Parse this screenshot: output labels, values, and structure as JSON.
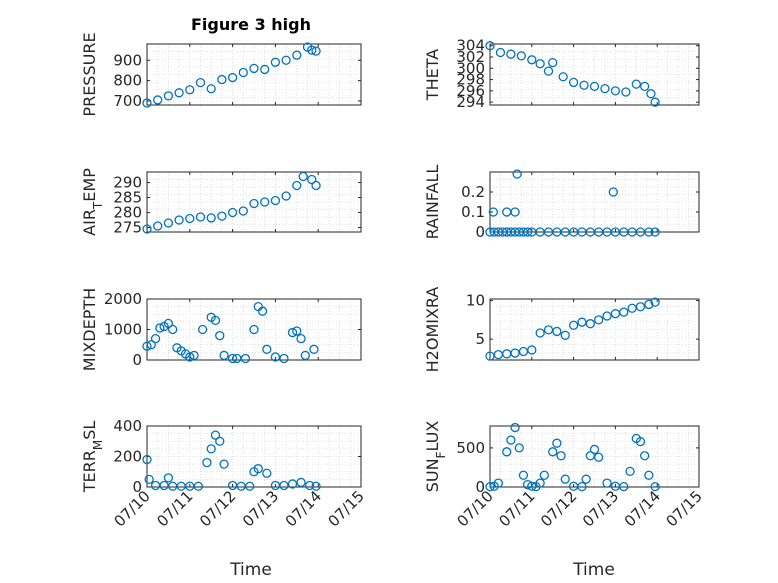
{
  "figure": {
    "title": "Figure 3 high",
    "xlabel": "Time",
    "x_tick_labels": [
      "07/10",
      "07/11",
      "07/12",
      "07/13",
      "07/14",
      "07/15"
    ],
    "marker_color": "#0072BD"
  },
  "chart_data": [
    {
      "type": "scatter",
      "ylabel_parts": [
        "PRESSURE"
      ],
      "ylim": [
        680,
        980
      ],
      "yticks": [
        700,
        800,
        900
      ],
      "x_days": [
        0.0,
        0.25,
        0.5,
        0.75,
        1.0,
        1.25,
        1.5,
        1.75,
        2.0,
        2.25,
        2.5,
        2.75,
        3.0,
        3.25,
        3.5,
        3.75,
        3.85,
        3.95
      ],
      "values": [
        690,
        705,
        725,
        740,
        755,
        790,
        760,
        805,
        815,
        840,
        860,
        855,
        890,
        900,
        925,
        965,
        950,
        945
      ]
    },
    {
      "type": "scatter",
      "ylabel_parts": [
        "THETA"
      ],
      "ylim": [
        293.5,
        304.3
      ],
      "yticks": [
        294,
        296,
        298,
        300,
        302,
        304
      ],
      "x_days": [
        0.0,
        0.25,
        0.5,
        0.75,
        1.0,
        1.2,
        1.4,
        1.5,
        1.75,
        2.0,
        2.25,
        2.5,
        2.75,
        3.0,
        3.25,
        3.5,
        3.7,
        3.85,
        3.95
      ],
      "values": [
        304,
        302.8,
        302.5,
        302.2,
        301.5,
        300.8,
        299.5,
        301,
        298.5,
        297.5,
        297.0,
        296.8,
        296.4,
        296.0,
        295.8,
        297.2,
        296.8,
        295.5,
        294
      ]
    },
    {
      "type": "scatter",
      "ylabel_parts": [
        "AIR",
        "T",
        "EMP"
      ],
      "ylim": [
        273.5,
        293.5
      ],
      "yticks": [
        275,
        280,
        285,
        290
      ],
      "x_days": [
        0.0,
        0.25,
        0.5,
        0.75,
        1.0,
        1.25,
        1.5,
        1.75,
        2.0,
        2.25,
        2.5,
        2.75,
        3.0,
        3.25,
        3.5,
        3.65,
        3.85,
        3.95
      ],
      "values": [
        274.5,
        275.5,
        276.5,
        277.5,
        278.0,
        278.5,
        278.2,
        278.8,
        280.0,
        280.5,
        283.0,
        283.5,
        284.0,
        285.5,
        289.0,
        292.0,
        291.0,
        289.0
      ]
    },
    {
      "type": "scatter",
      "ylabel_parts": [
        "RAINFALL"
      ],
      "ylim": [
        0,
        0.3
      ],
      "yticks": [
        0,
        0.1,
        0.2
      ],
      "x_days": [
        0.0,
        0.1,
        0.2,
        0.3,
        0.4,
        0.5,
        0.6,
        0.7,
        0.8,
        0.9,
        1.0,
        1.2,
        1.4,
        1.6,
        1.8,
        2.0,
        2.2,
        2.4,
        2.6,
        2.8,
        3.0,
        3.2,
        3.4,
        3.6,
        3.8,
        3.95,
        0.08,
        0.4,
        0.6,
        0.65,
        2.95
      ],
      "values": [
        0,
        0,
        0,
        0,
        0,
        0,
        0,
        0,
        0,
        0,
        0,
        0,
        0,
        0,
        0,
        0,
        0,
        0,
        0,
        0,
        0,
        0,
        0,
        0,
        0,
        0,
        0.1,
        0.1,
        0.1,
        0.29,
        0.2
      ]
    },
    {
      "type": "scatter",
      "ylabel_parts": [
        "MIXDEPTH"
      ],
      "ylim": [
        0,
        2000
      ],
      "yticks": [
        0,
        1000,
        2000
      ],
      "x_days": [
        0.0,
        0.1,
        0.2,
        0.3,
        0.4,
        0.5,
        0.6,
        0.7,
        0.8,
        0.9,
        1.0,
        1.1,
        1.3,
        1.5,
        1.6,
        1.7,
        1.8,
        2.0,
        2.1,
        2.3,
        2.5,
        2.6,
        2.7,
        2.8,
        3.0,
        3.2,
        3.4,
        3.5,
        3.6,
        3.7,
        3.9
      ],
      "values": [
        450,
        500,
        700,
        1050,
        1100,
        1200,
        1000,
        400,
        300,
        200,
        100,
        150,
        1000,
        1400,
        1300,
        800,
        150,
        50,
        50,
        50,
        1000,
        1750,
        1600,
        350,
        100,
        50,
        900,
        950,
        700,
        150,
        350
      ]
    },
    {
      "type": "scatter",
      "ylabel_parts": [
        "H2OMIXRA"
      ],
      "ylim": [
        2.3,
        10.2
      ],
      "yticks": [
        5,
        10
      ],
      "x_days": [
        0.0,
        0.2,
        0.4,
        0.6,
        0.8,
        1.0,
        1.2,
        1.4,
        1.6,
        1.8,
        2.0,
        2.2,
        2.4,
        2.6,
        2.8,
        3.0,
        3.2,
        3.4,
        3.6,
        3.8,
        3.95
      ],
      "values": [
        2.8,
        3.0,
        3.1,
        3.2,
        3.4,
        3.6,
        5.8,
        6.2,
        6.0,
        5.5,
        6.8,
        7.2,
        7.0,
        7.5,
        8.0,
        8.3,
        8.5,
        9.0,
        9.2,
        9.5,
        9.8
      ]
    },
    {
      "type": "scatter",
      "ylabel_parts": [
        "TERR",
        "M",
        "SL"
      ],
      "ylim": [
        0,
        400
      ],
      "yticks": [
        0,
        200,
        400
      ],
      "x_days": [
        0.0,
        0.05,
        0.2,
        0.4,
        0.5,
        0.6,
        0.8,
        1.0,
        1.2,
        1.4,
        1.5,
        1.6,
        1.7,
        1.8,
        2.0,
        2.2,
        2.4,
        2.5,
        2.6,
        2.8,
        3.0,
        3.2,
        3.4,
        3.6,
        3.8,
        3.95
      ],
      "values": [
        180,
        50,
        10,
        10,
        60,
        5,
        5,
        5,
        5,
        160,
        250,
        340,
        300,
        150,
        10,
        5,
        5,
        100,
        120,
        90,
        10,
        10,
        20,
        30,
        10,
        5
      ]
    },
    {
      "type": "scatter",
      "ylabel_parts": [
        "SUN",
        "F",
        "LUX"
      ],
      "ylim": [
        0,
        780
      ],
      "yticks": [
        0,
        500
      ],
      "x_days": [
        0.0,
        0.1,
        0.2,
        0.4,
        0.5,
        0.6,
        0.7,
        0.8,
        0.9,
        1.0,
        1.1,
        1.2,
        1.3,
        1.5,
        1.6,
        1.7,
        1.8,
        2.0,
        2.2,
        2.3,
        2.4,
        2.5,
        2.6,
        2.8,
        3.0,
        3.2,
        3.35,
        3.5,
        3.6,
        3.7,
        3.8,
        3.95
      ],
      "values": [
        5,
        10,
        50,
        450,
        600,
        760,
        500,
        150,
        30,
        10,
        5,
        50,
        150,
        450,
        560,
        400,
        100,
        10,
        5,
        100,
        400,
        480,
        380,
        50,
        10,
        5,
        200,
        620,
        580,
        400,
        150,
        5
      ]
    }
  ]
}
